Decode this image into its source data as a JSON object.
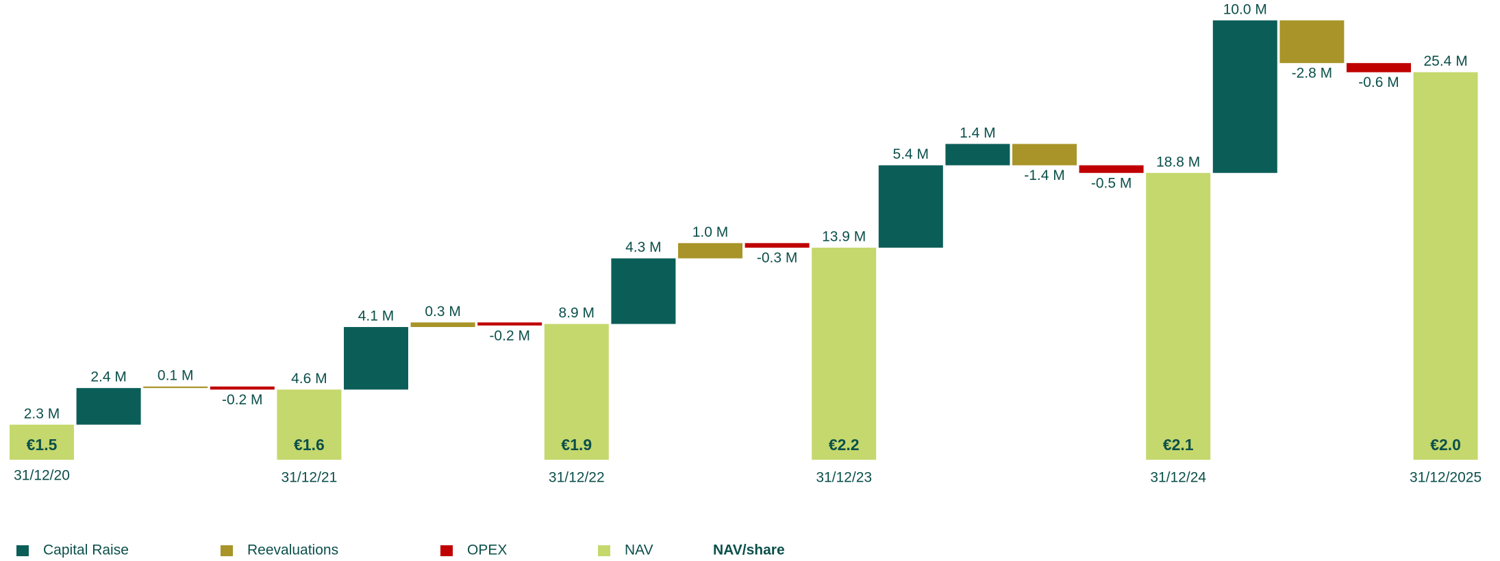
{
  "chart_data": {
    "type": "waterfall",
    "categories": [
      "31/12/20",
      null,
      null,
      null,
      "31/12/21",
      null,
      null,
      null,
      "31/12/22",
      null,
      null,
      null,
      "31/12/23",
      null,
      null,
      null,
      null,
      "31/12/24",
      null,
      null,
      null,
      "31/12/2025"
    ],
    "ylim": [
      0,
      30
    ],
    "series": [
      {
        "name": "Capital Raise",
        "color": "#0b5e58",
        "values": [
          null,
          2.4,
          null,
          null,
          null,
          4.1,
          null,
          null,
          null,
          4.3,
          null,
          null,
          null,
          5.4,
          1.4,
          null,
          null,
          null,
          10.0,
          null,
          null,
          null
        ],
        "value_labels": [
          null,
          "2.4 M",
          null,
          null,
          null,
          "4.1 M",
          null,
          null,
          null,
          "4.3 M",
          null,
          null,
          null,
          "5.4 M",
          "1.4 M",
          null,
          null,
          null,
          "10.0 M",
          null,
          null,
          null
        ]
      },
      {
        "name": "Reevaluations",
        "color": "#a89428",
        "values": [
          null,
          null,
          0.1,
          null,
          null,
          null,
          0.3,
          null,
          null,
          null,
          1.0,
          null,
          null,
          null,
          null,
          -1.4,
          null,
          null,
          null,
          -2.8,
          null,
          null
        ],
        "value_labels": [
          null,
          null,
          "0.1 M",
          null,
          null,
          null,
          "0.3 M",
          null,
          null,
          null,
          "1.0 M",
          null,
          null,
          null,
          null,
          "-1.4 M",
          null,
          null,
          null,
          "-2.8 M",
          null,
          null
        ]
      },
      {
        "name": "OPEX",
        "color": "#c00000",
        "values": [
          null,
          null,
          null,
          -0.2,
          null,
          null,
          null,
          -0.2,
          null,
          null,
          null,
          -0.3,
          null,
          null,
          null,
          null,
          -0.5,
          null,
          null,
          null,
          -0.6,
          null
        ],
        "value_labels": [
          null,
          null,
          null,
          "-0.2 M",
          null,
          null,
          null,
          "-0.2 M",
          null,
          null,
          null,
          "-0.3 M",
          null,
          null,
          null,
          null,
          "-0.5 M",
          null,
          null,
          null,
          "-0.6 M",
          null
        ]
      },
      {
        "name": "NAV",
        "color": "#c5d86d",
        "values": [
          2.3,
          null,
          null,
          null,
          4.6,
          null,
          null,
          null,
          8.9,
          null,
          null,
          null,
          13.9,
          null,
          null,
          null,
          null,
          18.8,
          null,
          null,
          null,
          25.4
        ],
        "value_labels": [
          "2.3 M",
          null,
          null,
          null,
          "4.6 M",
          null,
          null,
          null,
          "8.9 M",
          null,
          null,
          null,
          "13.9 M",
          null,
          null,
          null,
          null,
          "18.8 M",
          null,
          null,
          null,
          "25.4 M"
        ],
        "share_labels": [
          "€1.5",
          null,
          null,
          null,
          "€1.6",
          null,
          null,
          null,
          "€1.9",
          null,
          null,
          null,
          "€2.2",
          null,
          null,
          null,
          null,
          "€2.1",
          null,
          null,
          null,
          "€2.0"
        ],
        "total": true
      }
    ],
    "share_legend": "NAV/share"
  }
}
